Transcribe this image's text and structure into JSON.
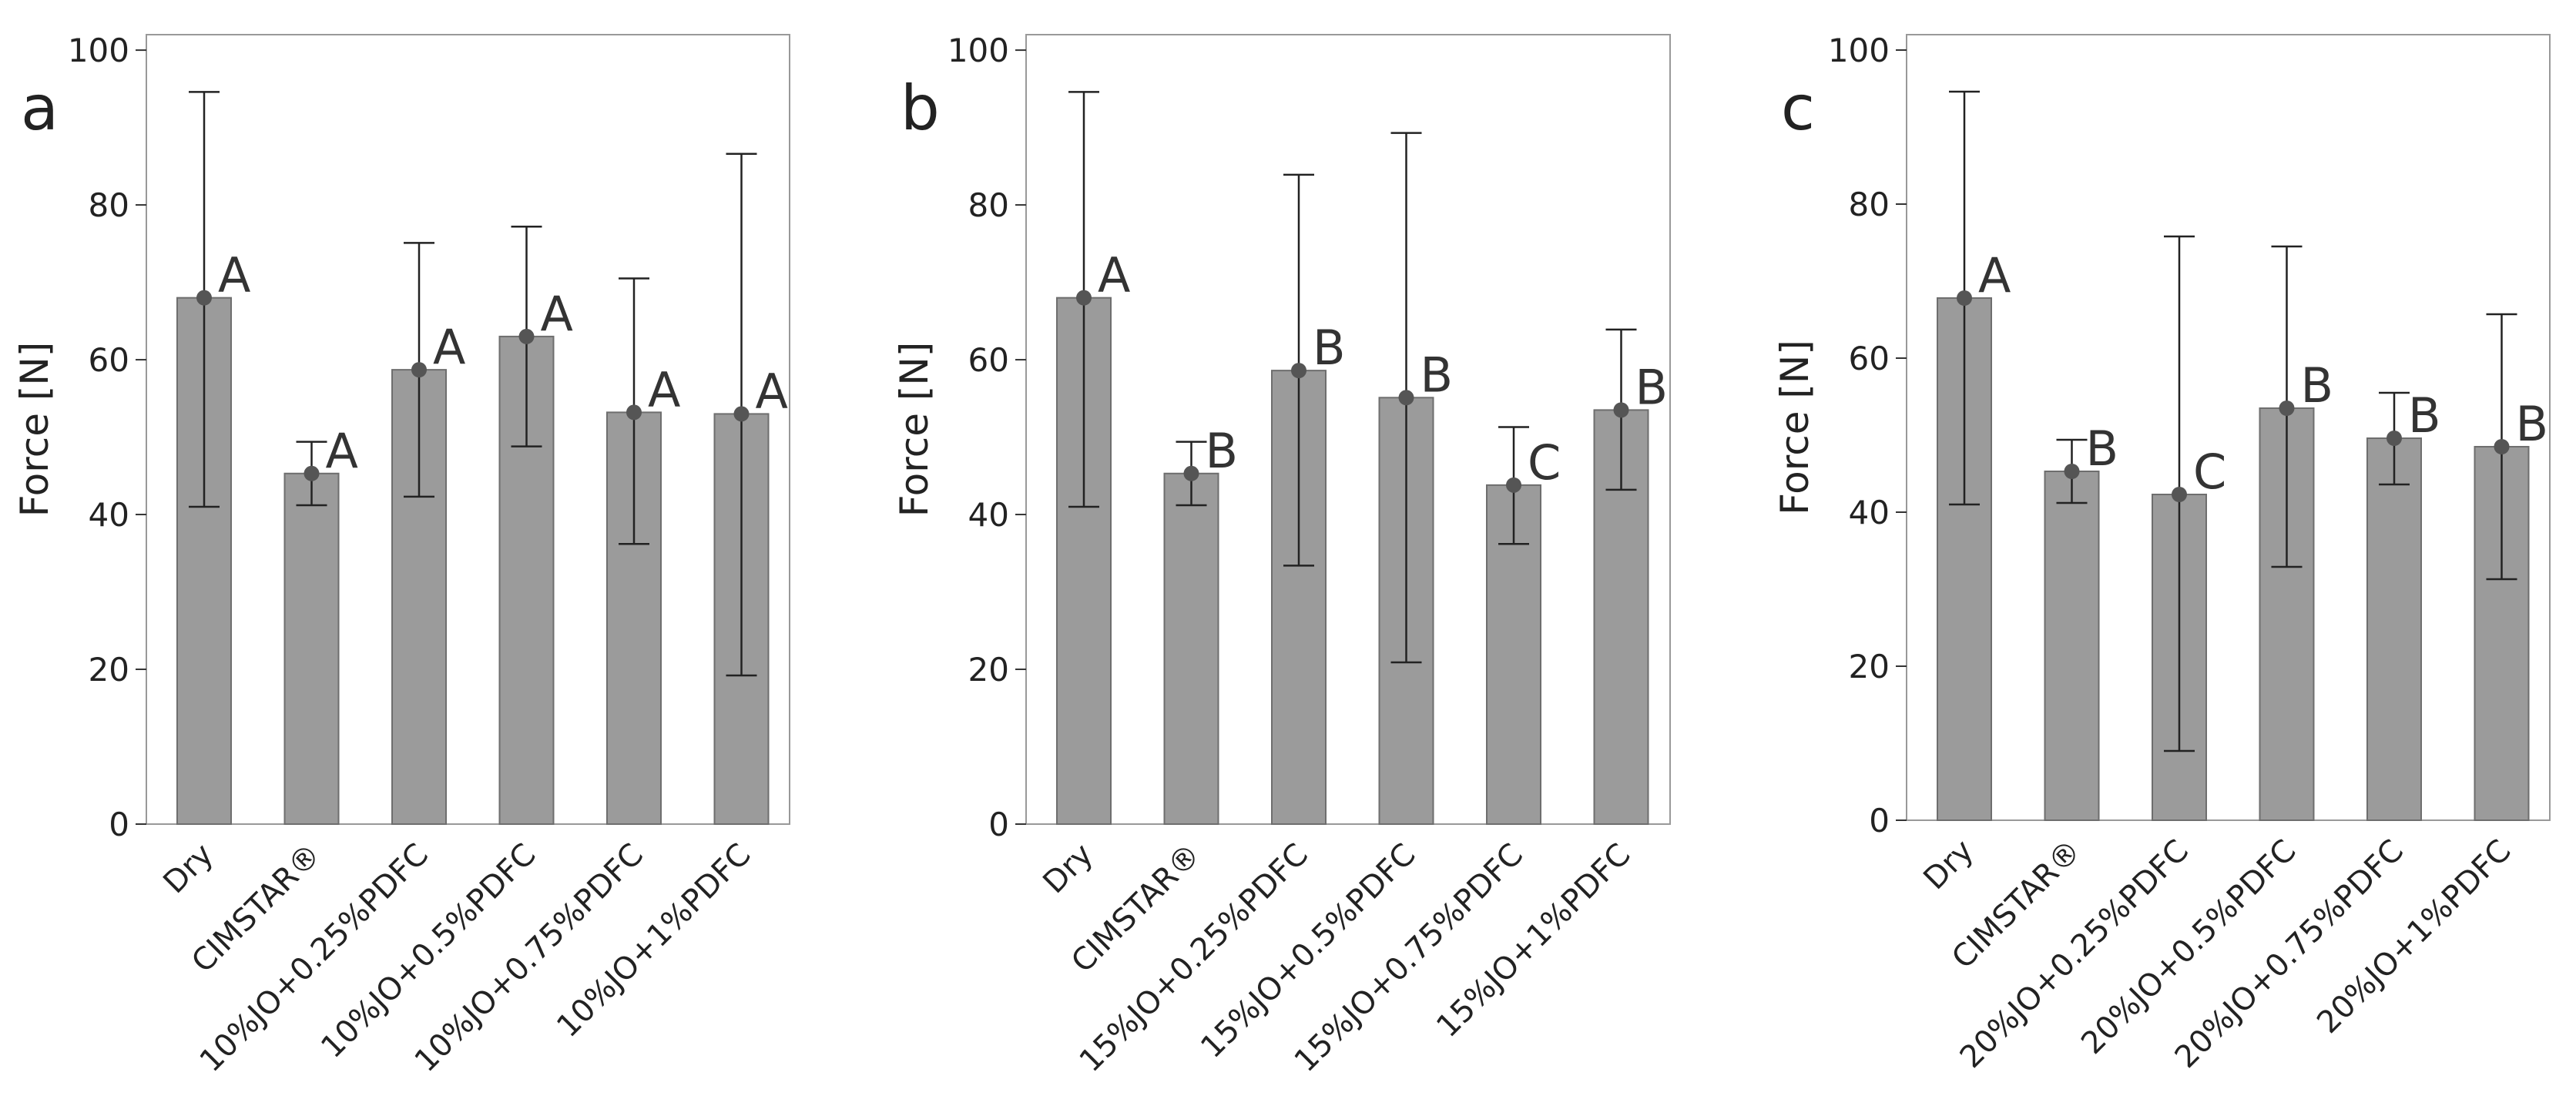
{
  "figure": {
    "bar_color": "#9b9b9b",
    "bar_edge_color": "#6e6e6e",
    "point_color": "#555555",
    "error_bar_color": "#222222",
    "frame_color": "#999999"
  },
  "chart_data": [
    {
      "type": "bar",
      "panel_label": "a",
      "ylabel": "Force [N]",
      "xlabel": "",
      "ylim": [
        0,
        102
      ],
      "yticks": [
        0,
        20,
        40,
        60,
        80,
        100
      ],
      "grid": false,
      "categories": [
        "Dry",
        "CIMSTAR®",
        "10%JO+0.25%PDFC",
        "10%JO+0.5%PDFC",
        "10%JO+0.75%PDFC",
        "10%JO+1%PDFC"
      ],
      "values": [
        68,
        45.3,
        58.7,
        63,
        53.2,
        53
      ],
      "error_low": [
        41,
        41.2,
        42.3,
        48.8,
        36.2,
        19.2
      ],
      "error_high": [
        94.6,
        49.4,
        75.1,
        77.2,
        70.5,
        86.6
      ],
      "group_letters": [
        "A",
        "A",
        "A",
        "A",
        "A",
        "A"
      ]
    },
    {
      "type": "bar",
      "panel_label": "b",
      "ylabel": "Force [N]",
      "xlabel": "",
      "ylim": [
        0,
        102
      ],
      "yticks": [
        0,
        20,
        40,
        60,
        80,
        100
      ],
      "grid": false,
      "categories": [
        "Dry",
        "CIMSTAR®",
        "15%JO+0.25%PDFC",
        "15%JO+0.5%PDFC",
        "15%JO+0.75%PDFC",
        "15%JO+1%PDFC"
      ],
      "values": [
        68,
        45.3,
        58.6,
        55.1,
        43.8,
        53.5
      ],
      "error_low": [
        41,
        41.2,
        33.4,
        20.9,
        36.2,
        43.2
      ],
      "error_high": [
        94.6,
        49.4,
        83.9,
        89.3,
        51.3,
        63.9
      ],
      "group_letters": [
        "A",
        "B",
        "B",
        "B",
        "C",
        "B"
      ]
    },
    {
      "type": "bar",
      "panel_label": "c",
      "ylabel": "Force [N]",
      "xlabel": "",
      "ylim": [
        0,
        102
      ],
      "yticks": [
        0,
        20,
        40,
        60,
        80,
        100
      ],
      "grid": false,
      "categories": [
        "Dry",
        "CIMSTAR®",
        "20%JO+0.25%PDFC",
        "20%JO+0.5%PDFC",
        "20%JO+0.75%PDFC",
        "20%JO+1%PDFC"
      ],
      "values": [
        67.8,
        45.3,
        42.3,
        53.5,
        49.6,
        48.5
      ],
      "error_low": [
        41,
        41.2,
        9,
        32.9,
        43.6,
        31.3
      ],
      "error_high": [
        94.6,
        49.4,
        75.8,
        74.5,
        55.5,
        65.7
      ],
      "group_letters": [
        "A",
        "B",
        "C",
        "B",
        "B",
        "B"
      ]
    }
  ]
}
